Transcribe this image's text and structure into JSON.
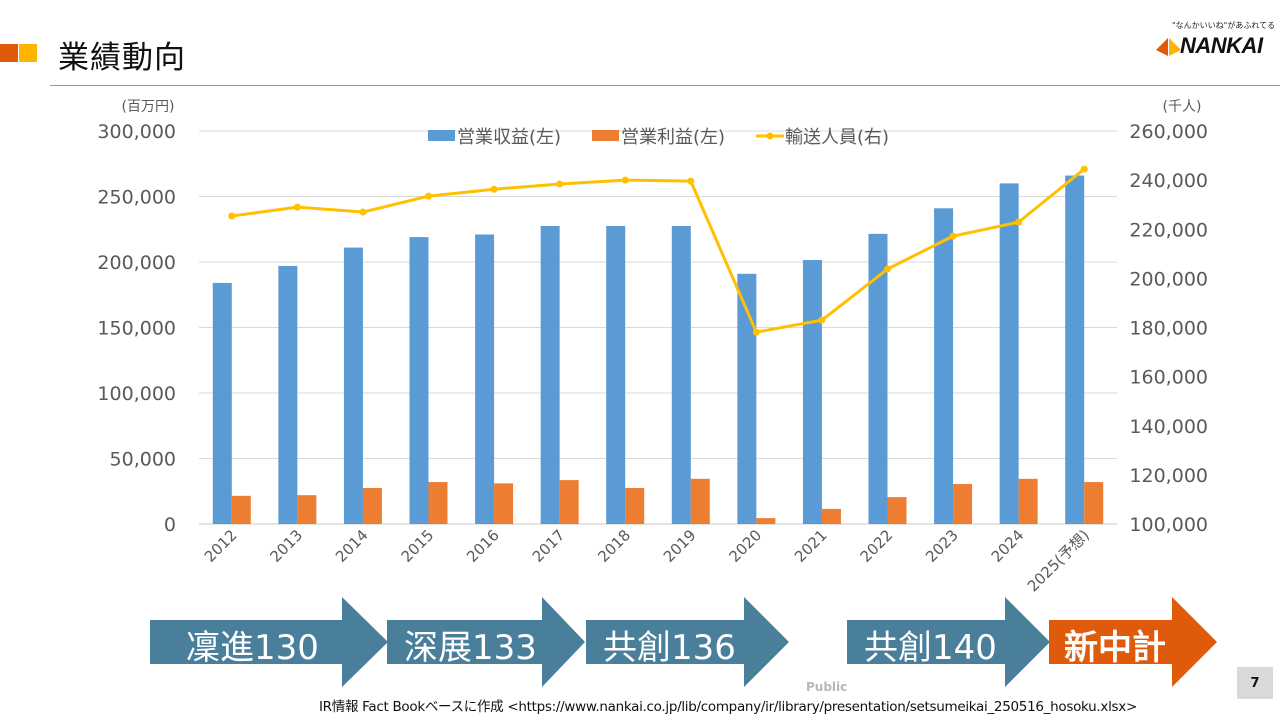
{
  "header": {
    "title": "業績動向",
    "accent_colors": [
      "#e05a0c",
      "#ffb400"
    ]
  },
  "logo": {
    "tagline": "\"なんかいいね\"があふれてる",
    "name": "NANKAI"
  },
  "chart_data": {
    "type": "bar",
    "title": "",
    "categories": [
      "2012",
      "2013",
      "2014",
      "2015",
      "2016",
      "2017",
      "2018",
      "2019",
      "2020",
      "2021",
      "2022",
      "2023",
      "2024",
      "2025(予想)"
    ],
    "left_axis": {
      "unit_label": "(百万円)",
      "ylim": [
        0,
        300000
      ],
      "ticks": [
        "0",
        "50,000",
        "100,000",
        "150,000",
        "200,000",
        "250,000",
        "300,000"
      ],
      "tick_values": [
        0,
        50000,
        100000,
        150000,
        200000,
        250000,
        300000
      ]
    },
    "right_axis": {
      "unit_label": "(千人)",
      "ylim": [
        100000,
        260000
      ],
      "ticks": [
        "100,000",
        "120,000",
        "140,000",
        "160,000",
        "180,000",
        "200,000",
        "220,000",
        "240,000",
        "260,000"
      ],
      "tick_values": [
        100000,
        120000,
        140000,
        160000,
        180000,
        200000,
        220000,
        240000,
        260000
      ]
    },
    "grid": true,
    "legend_position": "top",
    "series": [
      {
        "name": "営業収益(左)",
        "type": "bar",
        "axis": "left",
        "color": "#5b9bd5",
        "values": [
          184000,
          197000,
          211000,
          219000,
          221000,
          227500,
          227500,
          227500,
          191000,
          201500,
          221500,
          241000,
          260000,
          266000
        ]
      },
      {
        "name": "営業利益(左)",
        "type": "bar",
        "axis": "left",
        "color": "#ed7d31",
        "values": [
          21500,
          22000,
          27500,
          32000,
          31000,
          33500,
          27500,
          34500,
          4500,
          11500,
          20500,
          30500,
          34500,
          32000
        ]
      },
      {
        "name": "輸送人員(右)",
        "type": "line",
        "axis": "right",
        "color": "#ffc000",
        "values": [
          225400,
          229000,
          227000,
          233500,
          236300,
          238400,
          240000,
          239600,
          178100,
          183000,
          203800,
          217200,
          222900,
          244500
        ]
      }
    ]
  },
  "plans": [
    {
      "label": "凜進130",
      "color": "#4a7f9b"
    },
    {
      "label": "深展133",
      "color": "#4a7f9b"
    },
    {
      "label": "共創136",
      "color": "#4a7f9b"
    },
    {
      "label": "共創140",
      "color": "#4a7f9b"
    },
    {
      "label": "新中計",
      "color": "#e05a0c"
    }
  ],
  "footer": {
    "classification": "Public",
    "source": "IR情報 Fact Bookベースに作成 <https://www.nankai.co.jp/lib/company/ir/library/presentation/setsumeikai_250516_hosoku.xlsx>",
    "page_number": "7"
  }
}
